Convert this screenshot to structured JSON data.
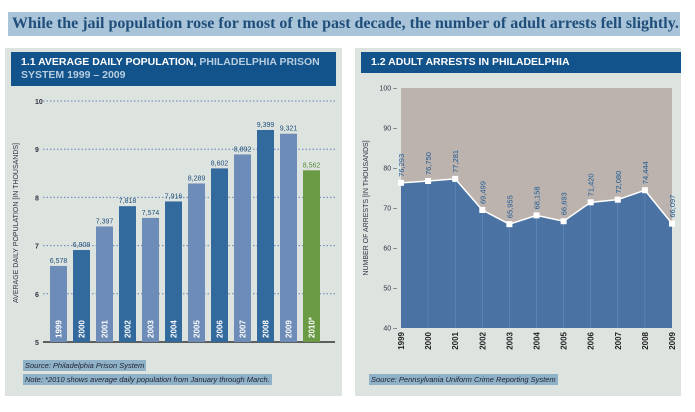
{
  "headline": "While the jail population rose for most of the past decade, the number of adult arrests fell slightly.",
  "chart_data": [
    {
      "type": "bar",
      "title_part1": "1.1  AVERAGE DAILY POPULATION,",
      "title_part2": "PHILADELPHIA PRISON SYSTEM 1999 – 2009",
      "ylabel": "AVERAGE DAILY POPULATION [IN THOUSANDS]",
      "ylim": [
        5,
        10
      ],
      "yticks": [
        "5",
        "6",
        "7",
        "8",
        "9",
        "10"
      ],
      "grid": true,
      "categories": [
        "1999",
        "2000",
        "2001",
        "2002",
        "2003",
        "2004",
        "2005",
        "2006",
        "2007",
        "2008",
        "2009",
        "2010*"
      ],
      "values": [
        6.578,
        6.908,
        7.397,
        7.818,
        7.574,
        7.916,
        8.289,
        8.602,
        8.892,
        9.399,
        9.321,
        8.562
      ],
      "labels": [
        "6,578",
        "6,908",
        "7,397",
        "7,818",
        "7,574",
        "7,916",
        "8,289",
        "8,602",
        "8,892",
        "9,399",
        "9,321",
        "8,562"
      ],
      "colors": {
        "light": "#6d8cb8",
        "dark": "#336a9e",
        "highlight": "#6a9a44"
      },
      "source": "Source: Philadelphia Prison System",
      "note": "Note: *2010 shows average daily population from January through March."
    },
    {
      "type": "area",
      "title": "1.2  ADULT ARRESTS IN PHILADELPHIA",
      "ylabel": "NUMBER OF ARRESTS [IN THOUSANDS]",
      "ylim": [
        40,
        100
      ],
      "yticks": [
        "40",
        "50",
        "60",
        "70",
        "80",
        "90",
        "100"
      ],
      "categories": [
        "1999",
        "2000",
        "2001",
        "2002",
        "2003",
        "2004",
        "2005",
        "2006",
        "2007",
        "2008",
        "2009"
      ],
      "values": [
        76.293,
        76.75,
        77.281,
        69.499,
        65.955,
        68.158,
        66.693,
        71.42,
        72.08,
        74.444,
        66.097
      ],
      "labels": [
        "76,293",
        "76,750",
        "77,281",
        "69,499",
        "65,955",
        "68,158",
        "66,693",
        "71,420",
        "72,080",
        "74,444",
        "66,097"
      ],
      "colors": {
        "fill": "#4a72a3",
        "background": "#bcb3ae"
      },
      "source": "Source: Pennsylvania Uniform Crime Reporting System"
    }
  ]
}
